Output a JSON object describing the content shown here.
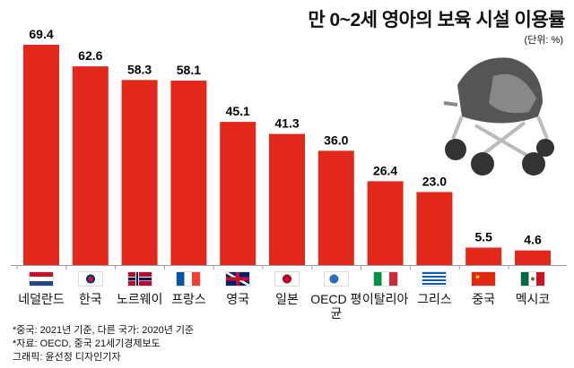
{
  "chart_data": {
    "type": "bar",
    "title": "만 0~2세 영아의 보육 시설 이용률",
    "unit_label": "(단위: %)",
    "categories": [
      "네덜란드",
      "한국",
      "노르웨이",
      "프랑스",
      "영국",
      "일본",
      "OECD 평균",
      "이탈리아",
      "그리스",
      "중국",
      "멕시코"
    ],
    "values": [
      69.4,
      62.6,
      58.3,
      58.1,
      45.1,
      41.3,
      36.0,
      26.4,
      23.0,
      5.5,
      4.6
    ],
    "value_labels": [
      "69.4",
      "62.6",
      "58.3",
      "58.1",
      "45.1",
      "41.3",
      "36.0",
      "26.4",
      "23.0",
      "5.5",
      "4.6"
    ],
    "flags": [
      "netherlands-flag",
      "korea-flag",
      "norway-flag",
      "france-flag",
      "uk-flag",
      "japan-flag",
      "oecd-logo",
      "italy-flag",
      "greece-flag",
      "china-flag",
      "mexico-flag"
    ],
    "ylim": [
      0,
      70
    ],
    "grid": false,
    "bar_color": "#e2281b"
  },
  "notes": [
    "*중국: 2021년 기준, 다른 국가: 2020년 기준",
    "*자료: OECD, 중국 21세기경제보도",
    "그래픽: 윤선정 디자인기자"
  ]
}
